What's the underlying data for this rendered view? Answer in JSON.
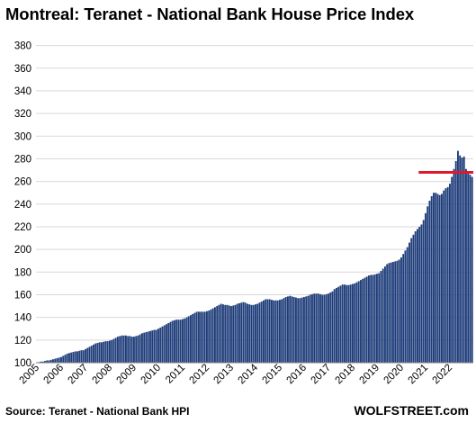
{
  "chart_data": {
    "type": "bar",
    "title": "Montreal: Teranet - National Bank House Price Index",
    "source": "Source: Teranet - National Bank HPI",
    "brand": "WOLFSTREET.com",
    "ylim": [
      100,
      390
    ],
    "yticks": [
      100,
      120,
      140,
      160,
      180,
      200,
      220,
      240,
      260,
      280,
      300,
      320,
      340,
      360,
      380
    ],
    "xticks": [
      "2005",
      "2006",
      "2007",
      "2008",
      "2009",
      "2010",
      "2011",
      "2012",
      "2013",
      "2014",
      "2015",
      "2016",
      "2017",
      "2018",
      "2019",
      "2020",
      "2021",
      "2022"
    ],
    "grid": true,
    "bar_color": "#1f3d7a",
    "reference_line": {
      "value": 268,
      "color": "#e0182d",
      "from_year": 2020.75
    },
    "series": [
      {
        "start_year": 2005,
        "start_month": 1,
        "frequency": "monthly",
        "values": [
          100,
          100.5,
          101,
          101,
          101.5,
          102,
          102,
          102.5,
          103,
          103.5,
          104,
          104.5,
          105,
          106,
          107,
          108,
          108.5,
          109,
          109.5,
          110,
          110,
          110.5,
          111,
          111,
          112,
          113,
          114,
          115,
          116,
          117,
          117.5,
          118,
          118,
          118.5,
          119,
          119,
          119.5,
          120,
          121,
          122,
          123,
          123.5,
          124,
          124,
          124,
          123.5,
          123.5,
          123,
          123,
          123.5,
          124,
          125,
          126,
          126.5,
          127,
          127.5,
          128,
          128.5,
          129,
          129,
          130,
          131,
          132,
          133,
          134,
          135,
          136,
          137,
          137.5,
          138,
          138,
          138,
          138.5,
          139,
          140,
          141,
          142,
          143,
          144,
          145,
          145,
          145,
          145,
          145,
          145.5,
          146,
          147,
          148,
          149,
          150,
          151,
          152,
          151.5,
          151,
          151,
          150.5,
          150,
          150.5,
          151,
          152,
          152.5,
          153,
          153.5,
          153,
          152,
          151.5,
          151,
          151,
          151.5,
          152,
          153,
          154,
          155,
          156,
          156,
          156,
          155.5,
          155,
          155,
          155,
          155.5,
          156,
          157,
          158,
          158.5,
          159,
          158.5,
          158,
          157.5,
          157,
          157,
          157.5,
          158,
          158.5,
          159,
          160,
          160.5,
          161,
          161,
          161,
          160.5,
          160,
          160,
          160.5,
          161,
          162,
          163,
          165,
          166,
          167,
          168,
          169,
          169,
          168.5,
          168.5,
          169,
          169.5,
          170,
          171,
          172,
          173,
          174,
          175,
          176,
          177,
          177.5,
          177.5,
          178,
          178.5,
          179,
          181,
          183,
          185,
          187,
          188,
          188.5,
          189,
          189.5,
          190,
          191,
          193,
          196,
          199,
          202,
          206,
          210,
          213,
          216,
          218,
          220,
          222,
          226,
          232,
          238,
          243,
          247,
          250,
          250,
          249,
          248,
          249,
          252,
          254,
          255,
          258,
          264,
          271,
          278,
          287,
          283,
          281,
          282,
          271,
          268,
          266,
          264
        ]
      }
    ]
  }
}
